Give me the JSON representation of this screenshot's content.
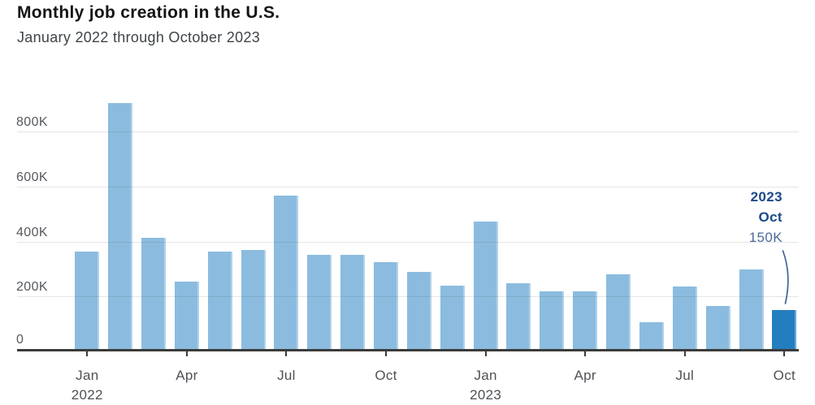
{
  "header": {
    "title": "Monthly job creation in the U.S.",
    "subtitle": "January 2022 through October 2023"
  },
  "chart_data": {
    "type": "bar",
    "title": "Monthly job creation in the U.S.",
    "subtitle": "January 2022 through October 2023",
    "unit": "thousands of jobs",
    "categories": [
      "Jan 2022",
      "Feb 2022",
      "Mar 2022",
      "Apr 2022",
      "May 2022",
      "Jun 2022",
      "Jul 2022",
      "Aug 2022",
      "Sep 2022",
      "Oct 2022",
      "Nov 2022",
      "Dec 2022",
      "Jan 2023",
      "Feb 2023",
      "Mar 2023",
      "Apr 2023",
      "May 2023",
      "Jun 2023",
      "Jul 2023",
      "Aug 2023",
      "Sep 2023",
      "Oct 2023"
    ],
    "values": [
      364,
      904,
      414,
      254,
      364,
      370,
      568,
      352,
      350,
      324,
      290,
      239,
      472,
      248,
      217,
      217,
      281,
      105,
      236,
      165,
      297,
      150
    ],
    "ylim": [
      0,
      920
    ],
    "yticks": [
      {
        "value": 0,
        "label": "0"
      },
      {
        "value": 200,
        "label": "200K"
      },
      {
        "value": 400,
        "label": "400K"
      },
      {
        "value": 600,
        "label": "600K"
      },
      {
        "value": 800,
        "label": "800K"
      }
    ],
    "xticks": [
      {
        "index": 0,
        "label": "Jan",
        "year": "2022"
      },
      {
        "index": 3,
        "label": "Apr"
      },
      {
        "index": 6,
        "label": "Jul"
      },
      {
        "index": 9,
        "label": "Oct"
      },
      {
        "index": 12,
        "label": "Jan",
        "year": "2023"
      },
      {
        "index": 15,
        "label": "Apr"
      },
      {
        "index": 18,
        "label": "Jul"
      },
      {
        "index": 21,
        "label": "Oct"
      }
    ],
    "grid": true,
    "legend": false,
    "highlight_index": 21,
    "annotation": {
      "year": "2023",
      "month": "Oct",
      "value": "150K"
    },
    "colors": {
      "bar": "#8bbcdf",
      "highlight": "#237ec0",
      "axis": "#3b3b3b",
      "annotation_label": "#1a4a8a",
      "annotation_value": "#4a6b9a"
    }
  }
}
